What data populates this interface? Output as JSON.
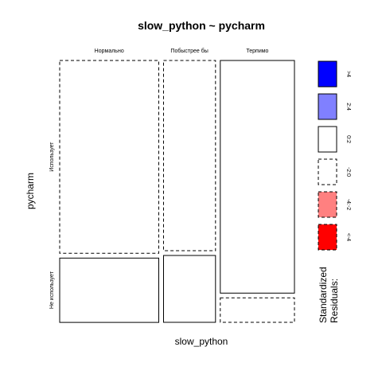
{
  "chart_data": {
    "type": "mosaic",
    "title": "slow_python ~ pycharm",
    "xlabel": "slow_python",
    "ylabel": "pycharm",
    "x_categories": [
      "Нормально",
      "Побыстрее бы",
      "Терпимо"
    ],
    "y_categories": [
      "Использует",
      "Не использует"
    ],
    "column_proportions": [
      0.41,
      0.215,
      0.307
    ],
    "cells": [
      {
        "x": "Нормально",
        "y": "Использует",
        "proportion": 0.75,
        "residual_class": "-2:0"
      },
      {
        "x": "Нормально",
        "y": "Не использует",
        "proportion": 0.25,
        "residual_class": "0:2"
      },
      {
        "x": "Побыстрее бы",
        "y": "Использует",
        "proportion": 0.74,
        "residual_class": "-2:0"
      },
      {
        "x": "Побыстрее бы",
        "y": "Не использует",
        "proportion": 0.26,
        "residual_class": "0:2"
      },
      {
        "x": "Терпимо",
        "y": "Использует",
        "proportion": 0.905,
        "residual_class": "0:2"
      },
      {
        "x": "Терпимо",
        "y": "Не использует",
        "proportion": 0.095,
        "residual_class": "-2:0"
      }
    ],
    "legend": {
      "title_lines": [
        "Standardized",
        "Residuals:"
      ],
      "placement": "right",
      "items": [
        {
          "label": ">4",
          "fill": "#0000ff",
          "dashed": false
        },
        {
          "label": "2:4",
          "fill": "#8080ff",
          "dashed": false
        },
        {
          "label": "0:2",
          "fill": "#ffffff",
          "dashed": false
        },
        {
          "label": "-2:0",
          "fill": "#ffffff",
          "dashed": true
        },
        {
          "label": "-4:-2",
          "fill": "#ff8080",
          "dashed": true
        },
        {
          "label": "<-4",
          "fill": "#ff0000",
          "dashed": true
        }
      ]
    }
  }
}
